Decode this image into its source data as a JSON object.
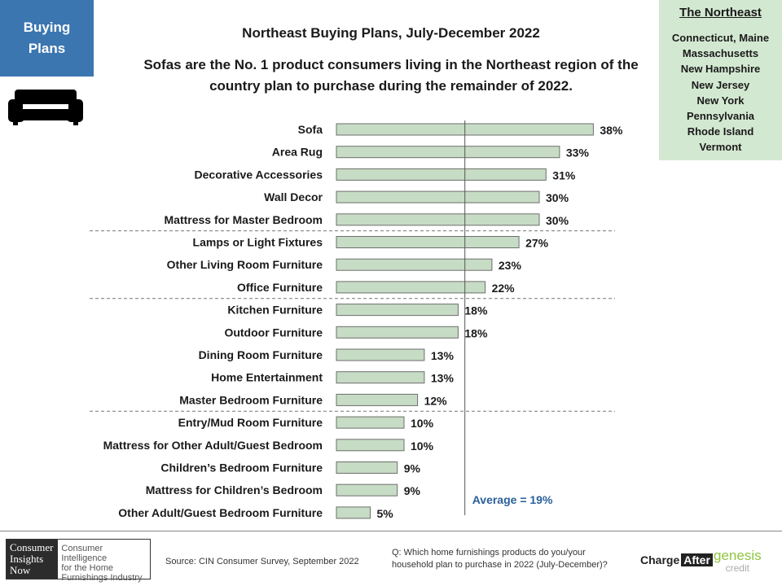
{
  "tag": {
    "line1": "Buying",
    "line2": "Plans"
  },
  "icon": "sofa-icon",
  "region": {
    "title": "The Northeast",
    "states": [
      "Connecticut, Maine",
      "Massachusetts",
      "New Hampshire",
      "New Jersey",
      "New York",
      "Pennsylvania",
      "Rhode Island",
      "Vermont"
    ]
  },
  "colors": {
    "tag_bg": "#3b76b0",
    "region_bg": "#d3e8d1",
    "bar_fill": "#c6dcc4",
    "bar_stroke": "#6e6e6e",
    "average_text": "#2a6099"
  },
  "chart_data": {
    "type": "bar",
    "orientation": "horizontal",
    "title": "Northeast Buying Plans, July-December 2022",
    "subtitle": "Sofas are the No. 1 product consumers living in the Northeast region of the country plan to purchase during the remainder of 2022.",
    "categories": [
      "Sofa",
      "Area Rug",
      "Decorative Accessories",
      "Wall Decor",
      "Mattress for Master Bedroom",
      "Lamps or Light Fixtures",
      "Other Living Room Furniture",
      "Office Furniture",
      "Kitchen Furniture",
      "Outdoor Furniture",
      "Dining Room Furniture",
      "Home Entertainment",
      "Master Bedroom Furniture",
      "Entry/Mud Room Furniture",
      "Mattress for Other Adult/Guest Bedroom",
      "Children’s Bedroom Furniture",
      "Mattress for Children’s Bedroom",
      "Other Adult/Guest Bedroom Furniture"
    ],
    "values": [
      38,
      33,
      31,
      30,
      30,
      27,
      23,
      22,
      18,
      18,
      13,
      13,
      12,
      10,
      10,
      9,
      9,
      5
    ],
    "data_labels": [
      "38%",
      "33%",
      "31%",
      "30%",
      "30%",
      "27%",
      "23%",
      "22%",
      "18%",
      "18%",
      "13%",
      "13%",
      "12%",
      "10%",
      "10%",
      "9%",
      "9%",
      "5%"
    ],
    "average": 19,
    "average_label": "Average = 19%",
    "grid": false
  },
  "footer": {
    "logo": {
      "line1": "Consumer",
      "line2": "Insights",
      "line3": "Now",
      "tagline1": "Consumer Intelligence",
      "tagline2": "for the Home",
      "tagline3": "Furnishings Industry"
    },
    "source": "Source: CIN Consumer Survey, September  2022",
    "question_line1": "Q: Which home furnishings products do you/your",
    "question_line2": "household plan to purchase in 2022 (July-December)?",
    "sponsor1_a": "Charge",
    "sponsor1_b": "After",
    "sponsor2_a": "genesis",
    "sponsor2_b": "credit"
  }
}
